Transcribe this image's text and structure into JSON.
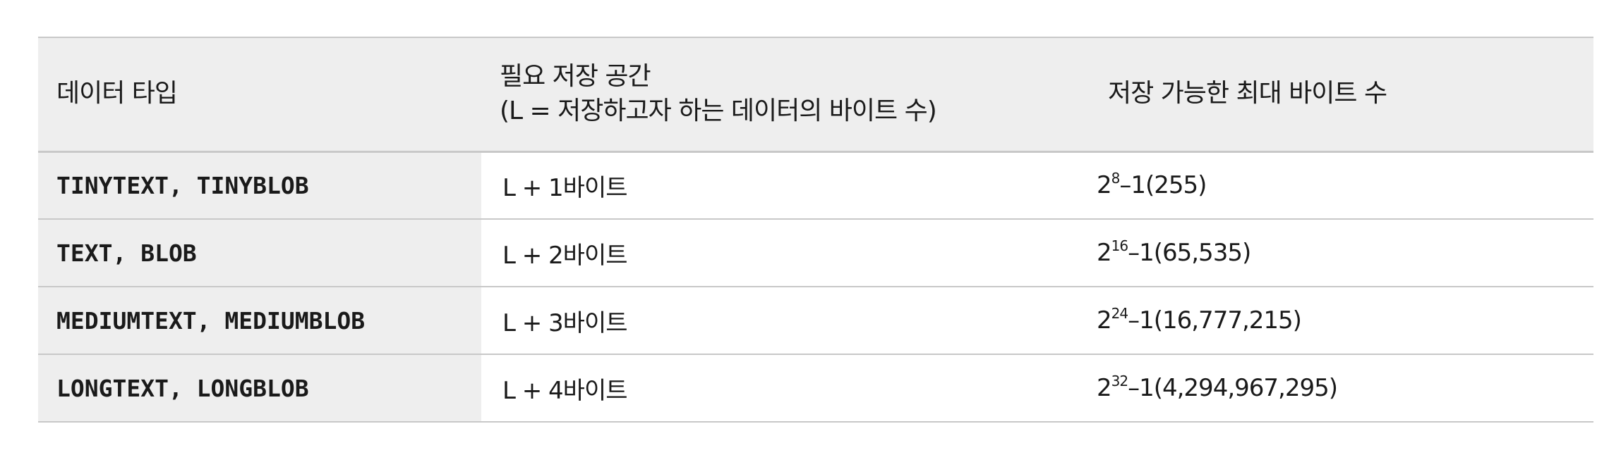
{
  "header": {
    "col1": "데이터 타입",
    "col2_line1": "필요 저장 공간",
    "col2_line2": "(L = 저장하고자 하는 데이터의 바이트 수)",
    "col3": "저장 가능한 최대 바이트 수"
  },
  "rows": [
    {
      "type": "TINYTEXT, TINYBLOB",
      "space": "L + 1바이트",
      "max_base": "2",
      "max_exp": "8",
      "max_rest": "–1(255)"
    },
    {
      "type": "TEXT, BLOB",
      "space": "L + 2바이트",
      "max_base": "2",
      "max_exp": "16",
      "max_rest": "–1(65,535)"
    },
    {
      "type": "MEDIUMTEXT, MEDIUMBLOB",
      "space": "L + 3바이트",
      "max_base": "2",
      "max_exp": "24",
      "max_rest": "–1(16,777,215)"
    },
    {
      "type": "LONGTEXT, LONGBLOB",
      "space": "L + 4바이트",
      "max_base": "2",
      "max_exp": "32",
      "max_rest": "–1(4,294,967,295)"
    }
  ]
}
